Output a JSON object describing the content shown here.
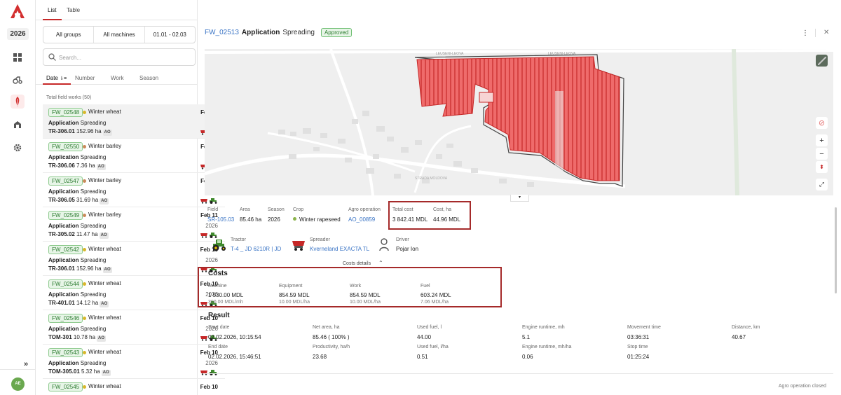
{
  "rail": {
    "year": "2026",
    "avatar": "AE",
    "icons": [
      "dashboard-icon",
      "tractor-icon",
      "field-works-icon",
      "garage-icon",
      "settings-icon"
    ]
  },
  "list": {
    "tabs": {
      "list": "List",
      "table": "Table"
    },
    "filters": {
      "groups": "All groups",
      "machines": "All machines",
      "dates": "01.01 - 02.03"
    },
    "search_placeholder": "Search...",
    "sort_tabs": {
      "date": "Date",
      "number": "Number",
      "work": "Work",
      "season": "Season"
    },
    "total": "Total field works (50)",
    "items": [
      {
        "id": "FW_02548",
        "crop": "Winter wheat",
        "crop_color": "#d8b72a",
        "date": "Feb 11",
        "op": "Application",
        "type": "Spreading",
        "year": "2026",
        "field": "TR-306.01",
        "area": "152.96 ha",
        "ao": "AO"
      },
      {
        "id": "FW_02550",
        "crop": "Winter barley",
        "crop_color": "#c98a5a",
        "date": "Feb 11",
        "op": "Application",
        "type": "Spreading",
        "year": "2026",
        "field": "TR-306.06",
        "area": "7.36 ha",
        "ao": "AO"
      },
      {
        "id": "FW_02547",
        "crop": "Winter barley",
        "crop_color": "#c98a5a",
        "date": "Feb 11",
        "op": "Application",
        "type": "Spreading",
        "year": "2026",
        "field": "TR-306.05",
        "area": "31.69 ha",
        "ao": "AO"
      },
      {
        "id": "FW_02549",
        "crop": "Winter barley",
        "crop_color": "#c98a5a",
        "date": "Feb 11",
        "op": "Application",
        "type": "Spreading",
        "year": "2026",
        "field": "TR-305.02",
        "area": "11.47 ha",
        "ao": "AO"
      },
      {
        "id": "FW_02542",
        "crop": "Winter wheat",
        "crop_color": "#d8b72a",
        "date": "Feb 10",
        "op": "Application",
        "type": "Spreading",
        "year": "2026",
        "field": "TR-306.01",
        "area": "152.96 ha",
        "ao": "AO"
      },
      {
        "id": "FW_02544",
        "crop": "Winter wheat",
        "crop_color": "#d8b72a",
        "date": "Feb 10",
        "op": "Application",
        "type": "Spreading",
        "year": "2026",
        "field": "TR-401.01",
        "area": "14.12 ha",
        "ao": "AO"
      },
      {
        "id": "FW_02546",
        "crop": "Winter wheat",
        "crop_color": "#d8b72a",
        "date": "Feb 10",
        "op": "Application",
        "type": "Spreading",
        "year": "2026",
        "field": "TOM-301",
        "area": "10.78 ha",
        "ao": "AO"
      },
      {
        "id": "FW_02543",
        "crop": "Winter wheat",
        "crop_color": "#d8b72a",
        "date": "Feb 10",
        "op": "Application",
        "type": "Spreading",
        "year": "2026",
        "field": "TOM-305.01",
        "area": "5.32 ha",
        "ao": "AO"
      },
      {
        "id": "FW_02545",
        "crop": "Winter wheat",
        "crop_color": "#d8b72a",
        "date": "Feb 10",
        "op": "",
        "type": "",
        "year": "",
        "field": "",
        "area": "",
        "ao": ""
      }
    ]
  },
  "detail": {
    "id": "FW_02513",
    "operation": "Application",
    "type": "Spreading",
    "status": "Approved",
    "map": {
      "road_label": "LEUSENI-LEOVA",
      "road_label_2": "STRADA MOLDOVA"
    },
    "summary": {
      "field_label": "Field",
      "field": "SR-105.03",
      "area_label": "Area",
      "area": "85.46 ha",
      "season_label": "Season",
      "season": "2026",
      "crop_label": "Crop",
      "crop": "Winter rapeseed",
      "crop_color": "#8bb34a",
      "agro_label": "Agro operation",
      "agro": "AO_00859",
      "total_cost_label": "Total cost",
      "total_cost": "3 842.41 MDL",
      "cost_ha_label": "Cost, ha",
      "cost_ha": "44.96 MDL"
    },
    "equipment": {
      "tractor_label": "Tractor",
      "tractor": "T-4 _ JD 6210R | JD",
      "spreader_label": "Spreader",
      "spreader": "Kverneland EXACTA TL",
      "driver_label": "Driver",
      "driver": "Pojar Ion"
    },
    "costs_details": "Costs details",
    "costs": {
      "title": "Costs",
      "items": [
        {
          "label": "Machine",
          "value": "1 530.00 MDL",
          "rate": "300.00 MDL/mh"
        },
        {
          "label": "Equipment",
          "value": "854.59 MDL",
          "rate": "10.00 MDL/ha"
        },
        {
          "label": "Work",
          "value": "854.59 MDL",
          "rate": "10.00 MDL/ha"
        },
        {
          "label": "Fuel",
          "value": "603.24 MDL",
          "rate": "7.06 MDL/ha"
        }
      ]
    },
    "result": {
      "title": "Result",
      "row1": [
        {
          "label": "Start date",
          "value": "02.02.2026, 10:15:54"
        },
        {
          "label": "Net area, ha",
          "value": "85.46 ( 100% )"
        },
        {
          "label": "Used fuel, l",
          "value": "44.00"
        },
        {
          "label": "Engine runtime, mh",
          "value": "5.1"
        },
        {
          "label": "Movement time",
          "value": "03:36:31"
        },
        {
          "label": "Distance, km",
          "value": "40.67"
        }
      ],
      "row2": [
        {
          "label": "End date",
          "value": "02.02.2026, 15:46:51"
        },
        {
          "label": "Productivity, ha/h",
          "value": "23.68"
        },
        {
          "label": "Used fuel, l/ha",
          "value": "0.51"
        },
        {
          "label": "Engine runtime, mh/ha",
          "value": "0.06"
        },
        {
          "label": "Stop time",
          "value": "01:25:24"
        }
      ]
    },
    "footer": "Agro operation closed"
  },
  "colors": {
    "accent": "#c62828",
    "link": "#3a74c5",
    "approved": "#2e7d32",
    "highlight": "#a52a2a",
    "field_fill": "#ef5350"
  }
}
